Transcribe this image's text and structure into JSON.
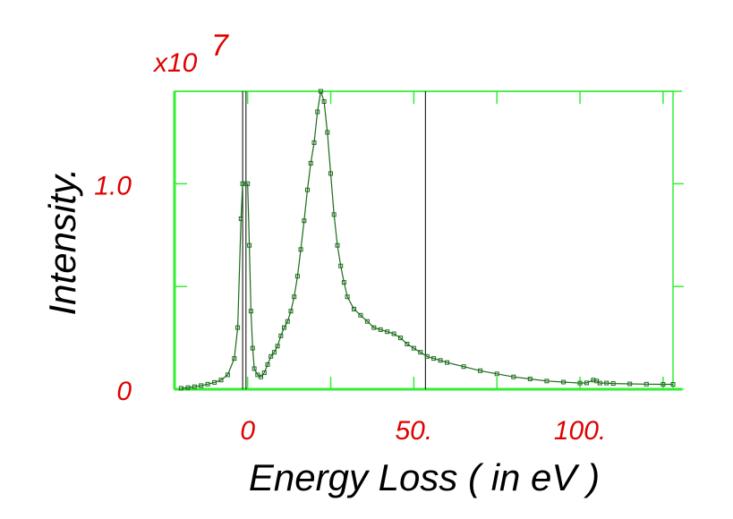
{
  "chart_data": {
    "type": "line",
    "title": "",
    "xlabel": "Energy Loss ( in eV )",
    "ylabel": "Intensity.",
    "y_multiplier": {
      "base": "x10",
      "exponent": "7"
    },
    "xlim": [
      -22,
      128
    ],
    "ylim": [
      0,
      1.45
    ],
    "x_ticks": [
      {
        "value": 0,
        "label": "0"
      },
      {
        "value": 50,
        "label": "50."
      },
      {
        "value": 100,
        "label": "100."
      }
    ],
    "y_ticks": [
      {
        "value": 0,
        "label": "0"
      },
      {
        "value": 1.0,
        "label": "1.0"
      }
    ],
    "y_minor_ticks": [
      0.5
    ],
    "x_minor_ticks": [
      25,
      75,
      125
    ],
    "vertical_markers": [
      -1.5,
      -0.5,
      53.5
    ],
    "grid": false,
    "colors": {
      "axes": "#33ee33",
      "series": "#1a6b1a",
      "tick_labels": "#e00000",
      "markers": "#000000"
    },
    "series": [
      {
        "x": [
          -20,
          -18,
          -16,
          -14,
          -12,
          -10,
          -8,
          -6,
          -4,
          -3,
          -2,
          -1.5,
          -1,
          0,
          0.5,
          1,
          1.5,
          2,
          3,
          4,
          5,
          6,
          7,
          8,
          9,
          10,
          11,
          12,
          13,
          14,
          15,
          16,
          17,
          18,
          19,
          20,
          21,
          22,
          23,
          24,
          25,
          26,
          27,
          28,
          29,
          30,
          32,
          34,
          36,
          38,
          40,
          42,
          44,
          46,
          48,
          50,
          52,
          54,
          56,
          58,
          60,
          65,
          70,
          75,
          80,
          85,
          90,
          95,
          100,
          102,
          104,
          105,
          106,
          108,
          110,
          115,
          120,
          125,
          128
        ],
        "y": [
          0.005,
          0.008,
          0.012,
          0.018,
          0.025,
          0.033,
          0.045,
          0.07,
          0.15,
          0.3,
          0.83,
          1.0,
          1.0,
          1.0,
          0.7,
          0.38,
          0.2,
          0.1,
          0.07,
          0.06,
          0.08,
          0.12,
          0.16,
          0.18,
          0.21,
          0.26,
          0.3,
          0.33,
          0.38,
          0.45,
          0.55,
          0.68,
          0.82,
          0.97,
          1.1,
          1.2,
          1.35,
          1.45,
          1.4,
          1.25,
          1.05,
          0.85,
          0.7,
          0.6,
          0.52,
          0.45,
          0.39,
          0.36,
          0.33,
          0.3,
          0.29,
          0.28,
          0.27,
          0.25,
          0.22,
          0.2,
          0.18,
          0.16,
          0.15,
          0.14,
          0.13,
          0.11,
          0.09,
          0.075,
          0.06,
          0.05,
          0.04,
          0.035,
          0.03,
          0.031,
          0.045,
          0.04,
          0.03,
          0.03,
          0.028,
          0.026,
          0.025,
          0.024,
          0.024
        ]
      }
    ]
  }
}
